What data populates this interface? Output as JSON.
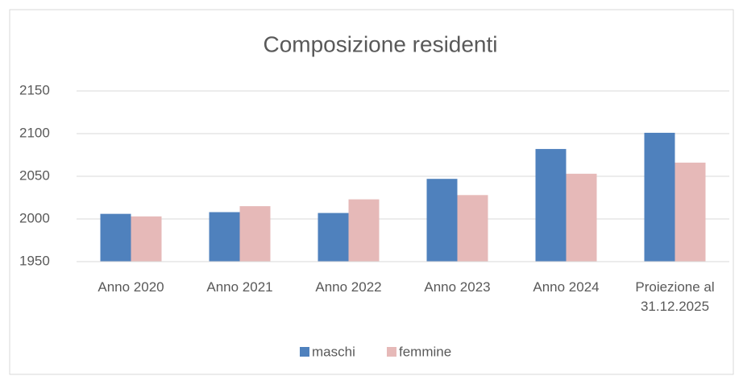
{
  "chart_data": {
    "type": "bar",
    "title": "Composizione residenti",
    "categories": [
      "Anno 2020",
      "Anno 2021",
      "Anno 2022",
      "Anno 2023",
      "Anno 2024",
      "Proiezione al 31.12.2025"
    ],
    "series": [
      {
        "name": "maschi",
        "color": "#4f81bd",
        "values": [
          2006,
          2008,
          2007,
          2047,
          2082,
          2101
        ]
      },
      {
        "name": "femmine",
        "color": "#e6b9b8",
        "values": [
          2003,
          2015,
          2023,
          2028,
          2053,
          2066
        ]
      }
    ],
    "ylim": [
      1950,
      2150
    ],
    "yticks": [
      1950,
      2000,
      2050,
      2100,
      2150
    ],
    "grid": true,
    "legend": "bottom"
  }
}
